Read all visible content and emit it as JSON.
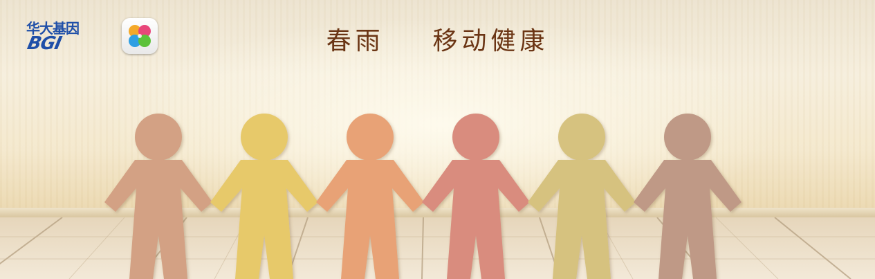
{
  "brand": {
    "name_cn": "华大基因",
    "name_en": "BGI",
    "app_icon": "four-leaf-clover-icon"
  },
  "headline": {
    "part1": "春雨",
    "part2": "移动健康"
  },
  "scene": {
    "figures": [
      {
        "name": "figure-1",
        "color": "#d3a184"
      },
      {
        "name": "figure-2",
        "color": "#e7c96b"
      },
      {
        "name": "figure-3",
        "color": "#e8a276"
      },
      {
        "name": "figure-4",
        "color": "#d98c7e"
      },
      {
        "name": "figure-5",
        "color": "#d6c27f"
      },
      {
        "name": "figure-6",
        "color": "#bf9986"
      }
    ],
    "title_color": "#6b3514",
    "brand_color": "#1f4fa8"
  }
}
